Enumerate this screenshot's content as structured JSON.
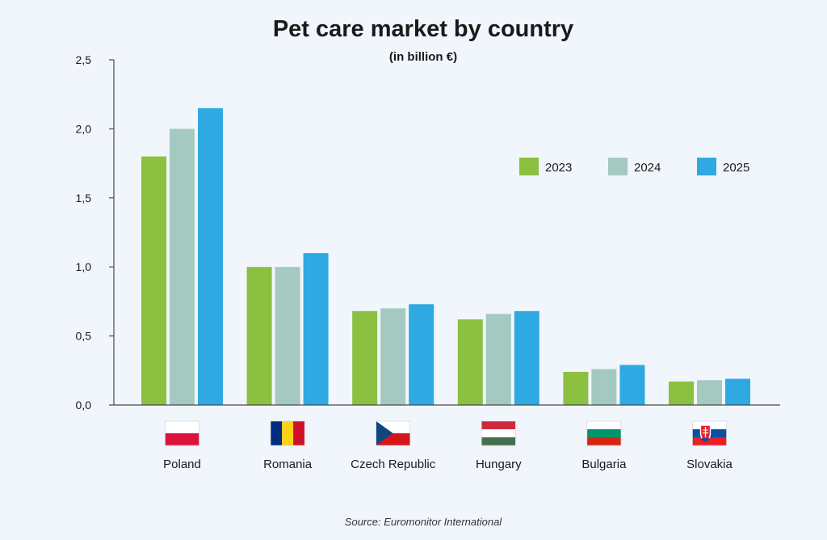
{
  "chart_data": {
    "type": "bar",
    "title": "Pet care market by country",
    "subtitle": "(in billion €)",
    "xlabel": "",
    "ylabel": "",
    "ylim": [
      0,
      2.5
    ],
    "yticks": [
      0.0,
      0.5,
      1.0,
      1.5,
      2.0,
      2.5
    ],
    "ytick_labels": [
      "0,0",
      "0,5",
      "1,0",
      "1,5",
      "2,0",
      "2,5"
    ],
    "categories": [
      "Poland",
      "Romania",
      "Czech Republic",
      "Hungary",
      "Bulgaria",
      "Slovakia"
    ],
    "series": [
      {
        "name": "2023",
        "color": "#8bc040",
        "values": [
          1.8,
          1.0,
          0.68,
          0.62,
          0.24,
          0.17
        ]
      },
      {
        "name": "2024",
        "color": "#a3c9c1",
        "values": [
          2.0,
          1.0,
          0.7,
          0.66,
          0.26,
          0.18
        ]
      },
      {
        "name": "2025",
        "color": "#2ea9e1",
        "values": [
          2.15,
          1.1,
          0.73,
          0.68,
          0.29,
          0.19
        ]
      }
    ],
    "legend_position": "top-right",
    "grid": false,
    "source": "Source: Euromonitor International",
    "flags": [
      "poland-flag",
      "romania-flag",
      "czech-flag",
      "hungary-flag",
      "bulgaria-flag",
      "slovakia-flag"
    ]
  }
}
